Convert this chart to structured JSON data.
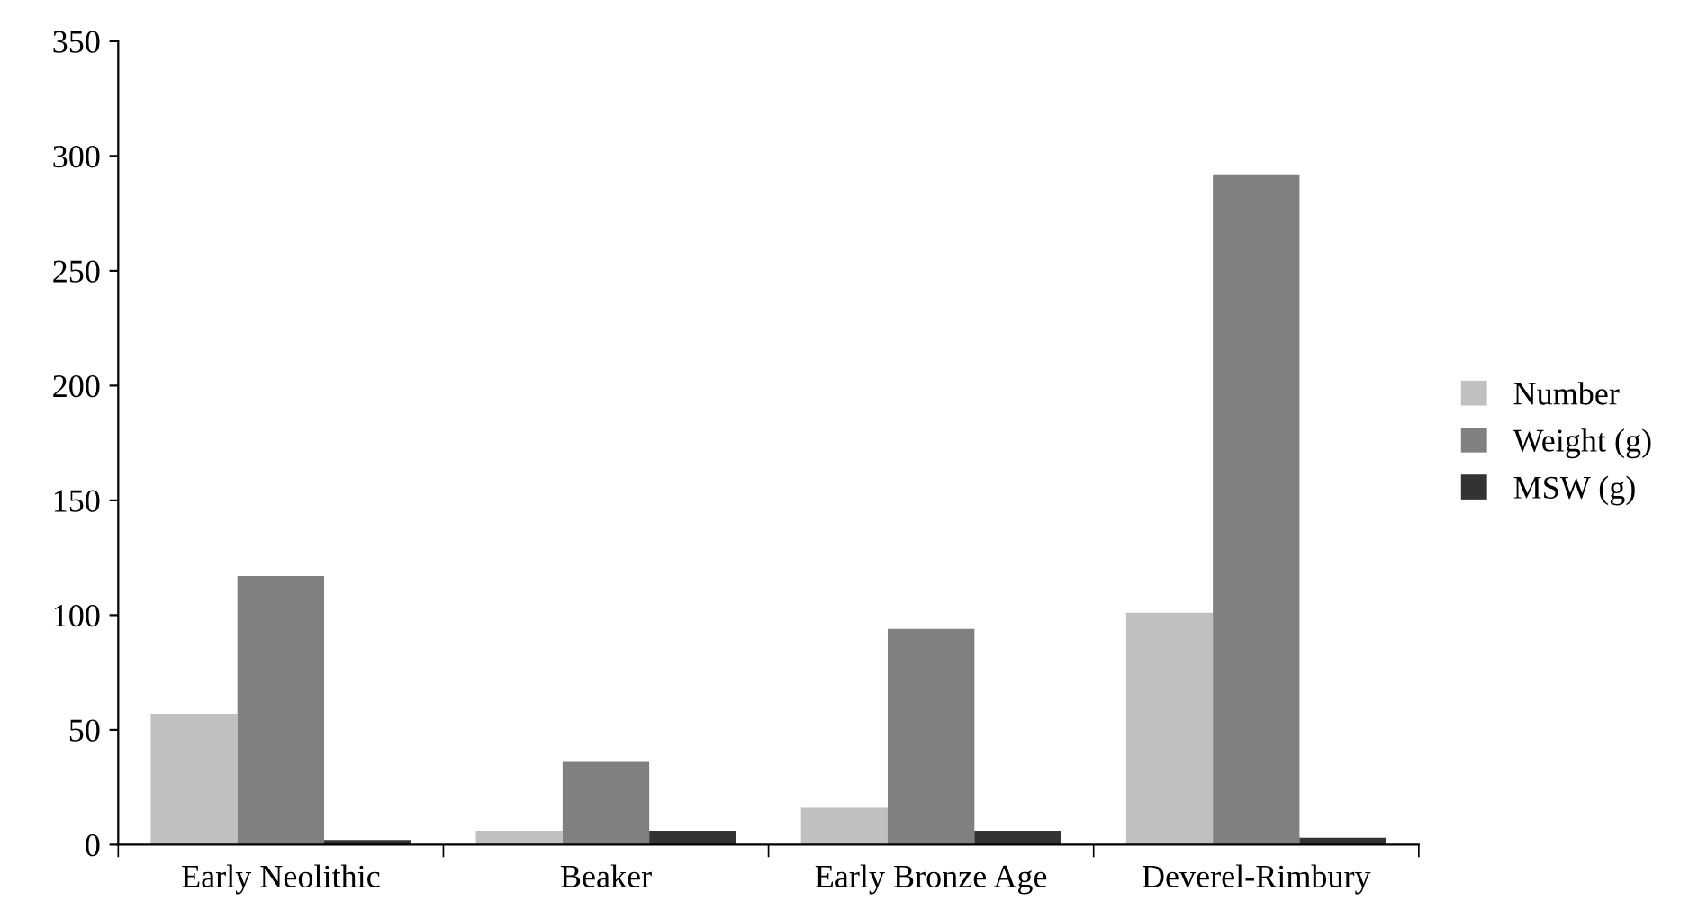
{
  "chart_data": {
    "type": "bar",
    "categories": [
      "Early Neolithic",
      "Beaker",
      "Early Bronze Age",
      "Deverel-Rimbury"
    ],
    "series": [
      {
        "name": "Number",
        "color": "#c0c0c0",
        "values": [
          57,
          6,
          16,
          101
        ]
      },
      {
        "name": "Weight (g)",
        "color": "#808080",
        "values": [
          117,
          36,
          94,
          292
        ]
      },
      {
        "name": "MSW (g)",
        "color": "#333333",
        "values": [
          2,
          6,
          6,
          3
        ]
      }
    ],
    "ylim": [
      0,
      350
    ],
    "yticks": [
      0,
      50,
      100,
      150,
      200,
      250,
      300,
      350
    ],
    "grid": false,
    "legend": "right"
  }
}
